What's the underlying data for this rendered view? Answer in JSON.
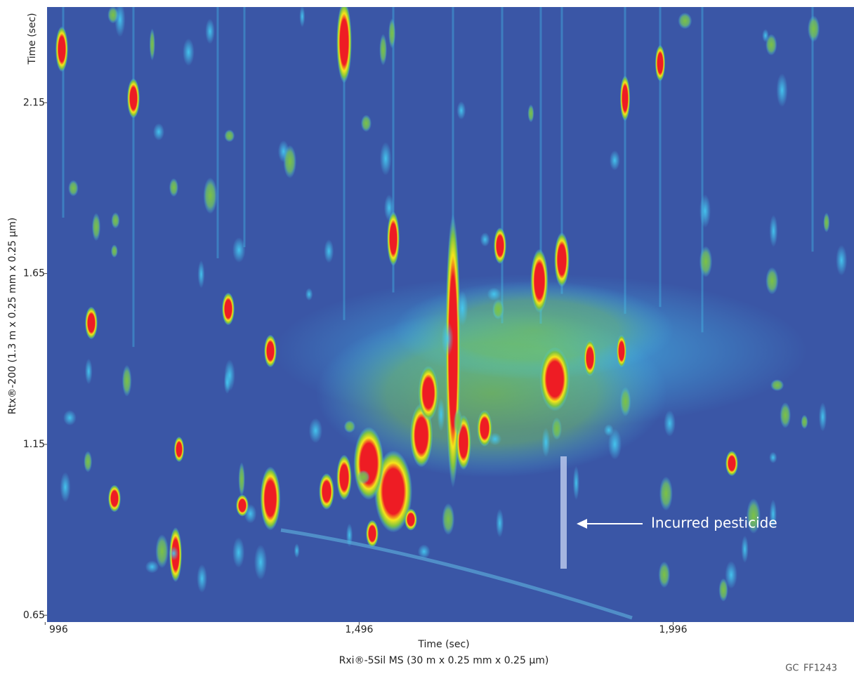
{
  "chart_data": {
    "type": "heatmap",
    "xlabel": "Time (sec)",
    "xlabel2": "Rxi®-5Sil MS (30 m x 0.25 mm x 0.25 µm)",
    "ylabel": "Time (sec)",
    "ylabel2": "Rtx®-200 (1.3 m x 0.25 mm x 0.25 µm)",
    "xlim": [
      999,
      2284
    ],
    "xticks": [
      996,
      {
        "value": 1496,
        "label": "1,496"
      },
      {
        "value": 1996,
        "label": "1,996"
      }
    ],
    "ylim": [
      0.63,
      2.43
    ],
    "yticks": [
      0.65,
      1.15,
      1.65,
      2.15
    ],
    "annotation": "Incurred pesticide",
    "footnote": "GC_FF1243"
  }
}
